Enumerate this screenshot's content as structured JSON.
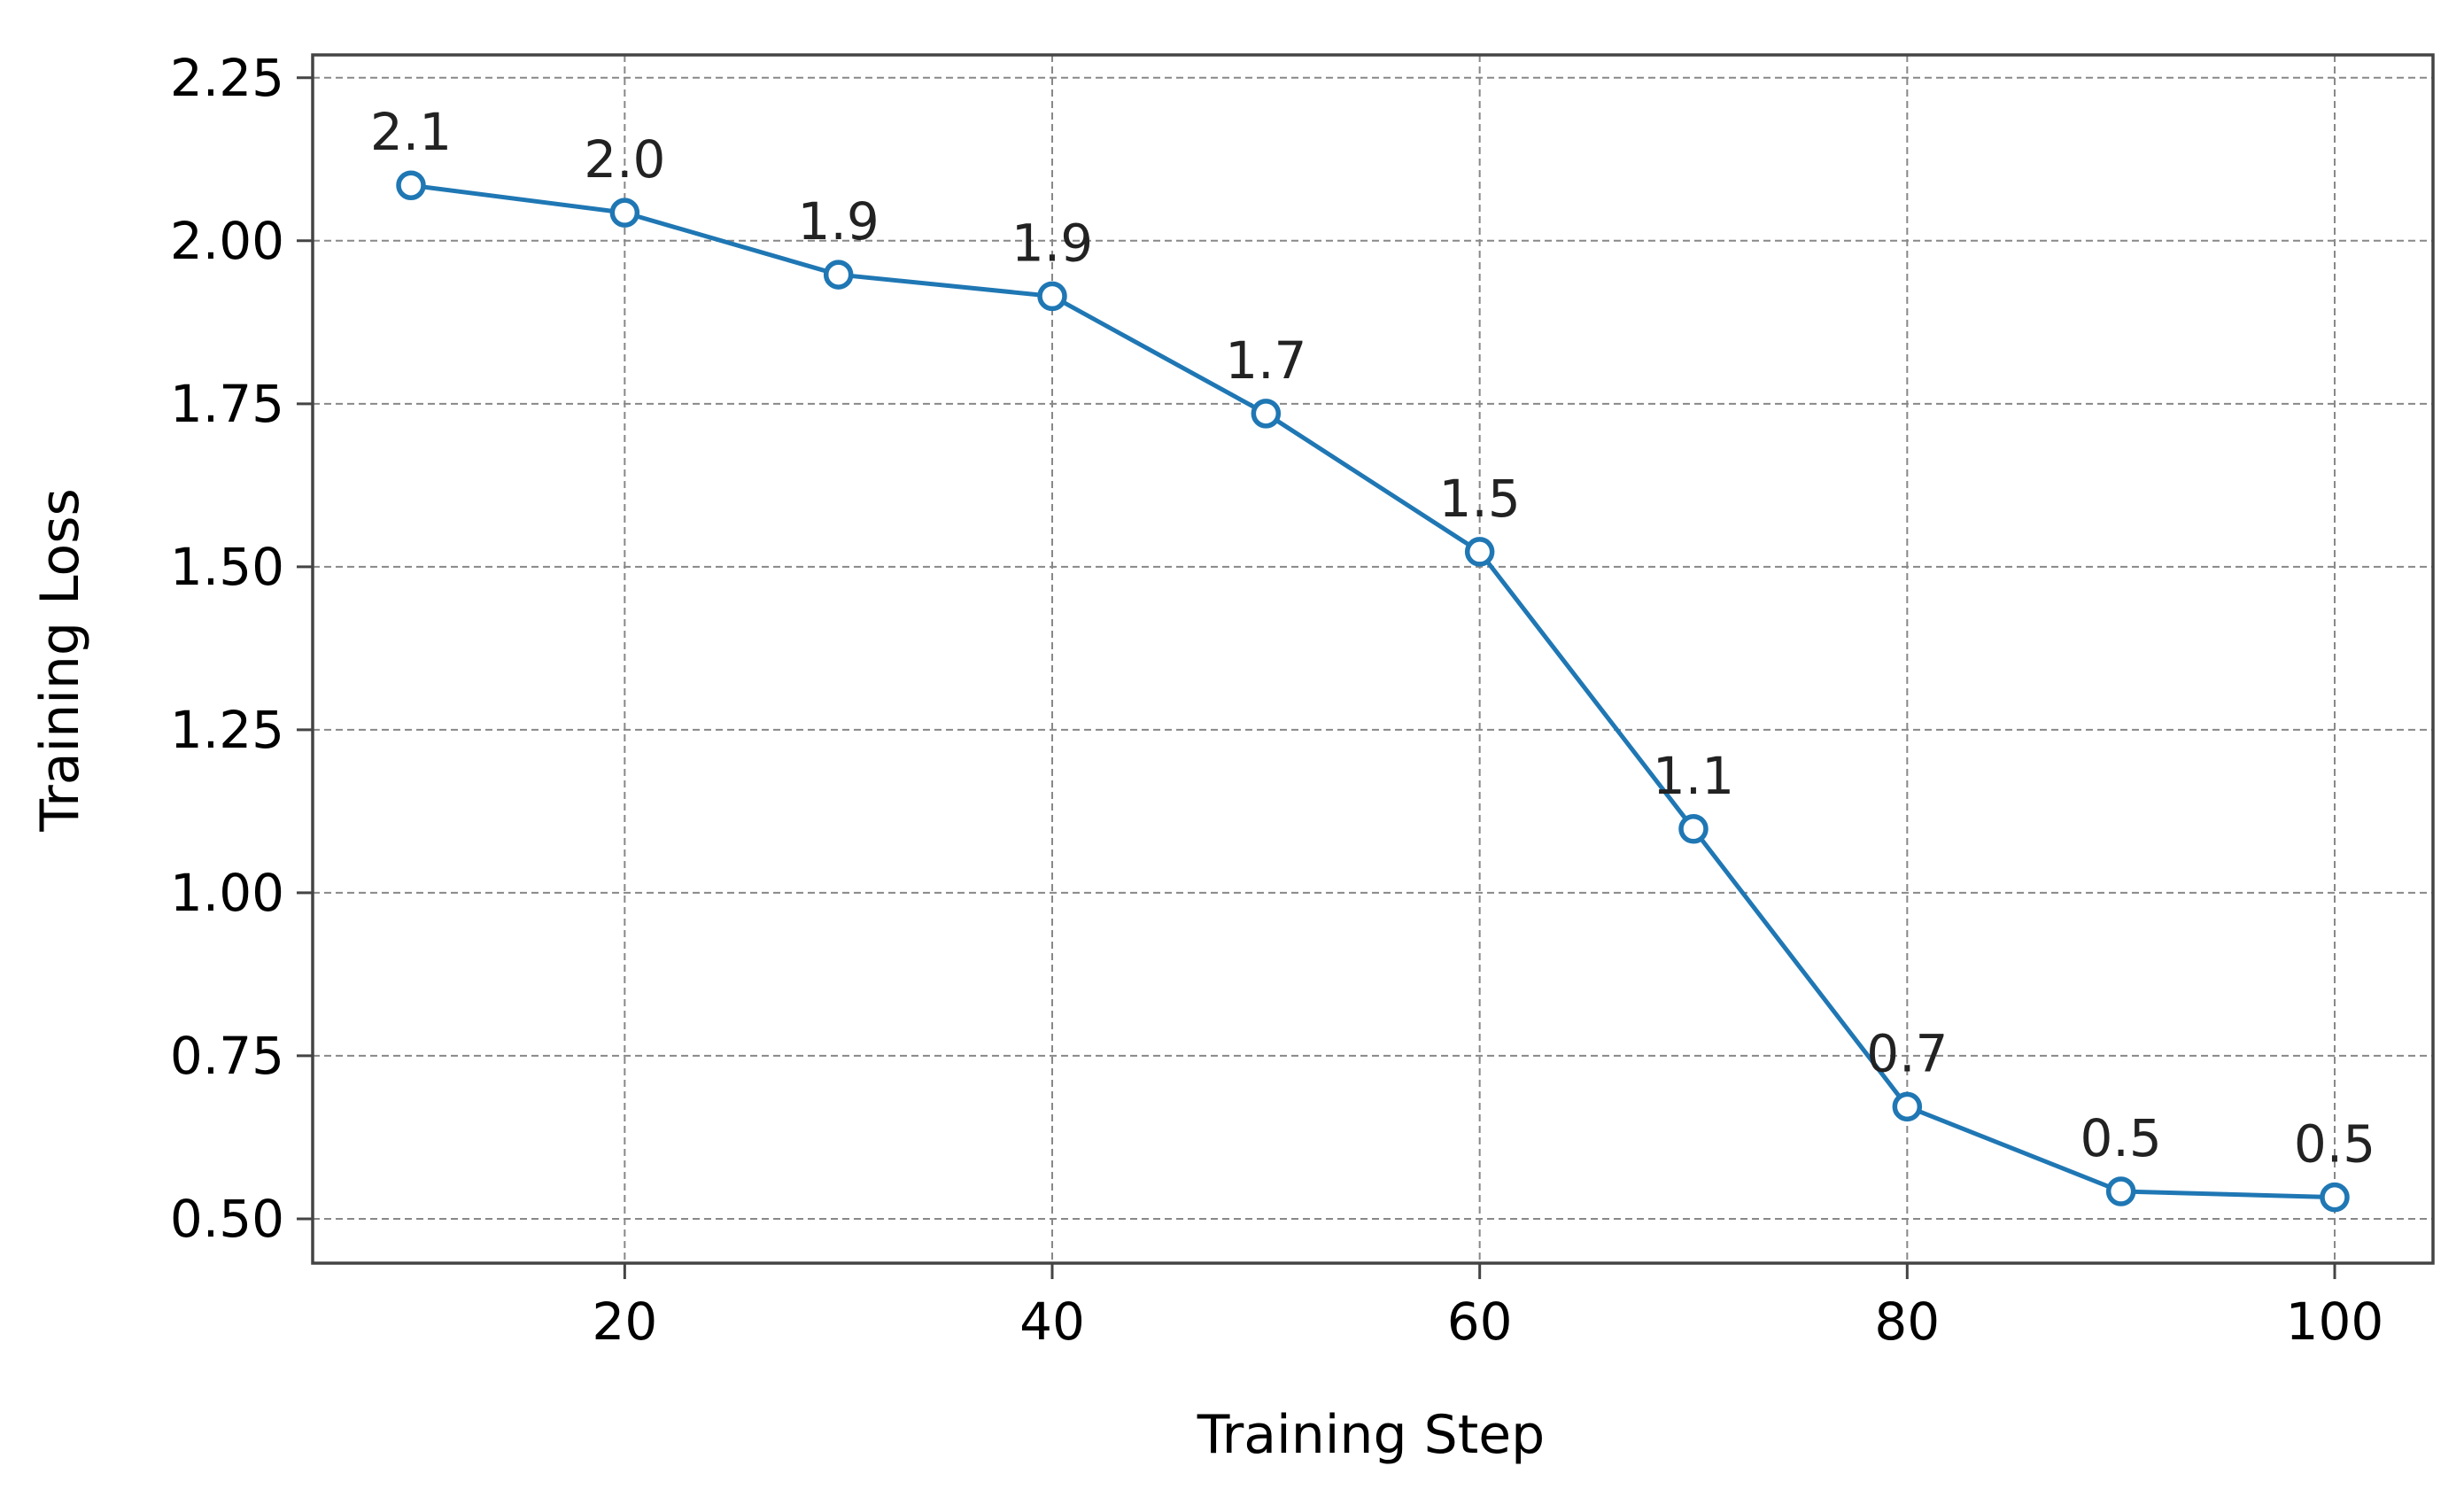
{
  "chart_data": {
    "type": "line",
    "title": "",
    "xlabel": "Training Step",
    "ylabel": "Training Loss",
    "x": [
      10,
      20,
      30,
      40,
      50,
      60,
      70,
      80,
      90,
      100
    ],
    "series": [
      {
        "values": [
          2.085,
          2.043,
          1.948,
          1.915,
          1.735,
          1.523,
          1.098,
          0.672,
          0.542,
          0.533
        ],
        "data_labels": [
          "2.1",
          "2.0",
          "1.9",
          "1.9",
          "1.7",
          "1.5",
          "1.1",
          "0.7",
          "0.5",
          "0.5"
        ],
        "color": "#1f77b4",
        "marker": "hollow-circle"
      }
    ],
    "xlim": [
      5.4,
      104.6
    ],
    "ylim": [
      0.432,
      2.285
    ],
    "xticks": [
      20,
      40,
      60,
      80,
      100
    ],
    "xtick_labels": [
      "20",
      "40",
      "60",
      "80",
      "100"
    ],
    "yticks": [
      0.5,
      0.75,
      1.0,
      1.25,
      1.5,
      1.75,
      2.0,
      2.25
    ],
    "ytick_labels": [
      "0.50",
      "0.75",
      "1.00",
      "1.25",
      "1.50",
      "1.75",
      "2.00",
      "2.25"
    ],
    "grid": true,
    "grid_color": "#888888",
    "axis_color": "#444444"
  }
}
